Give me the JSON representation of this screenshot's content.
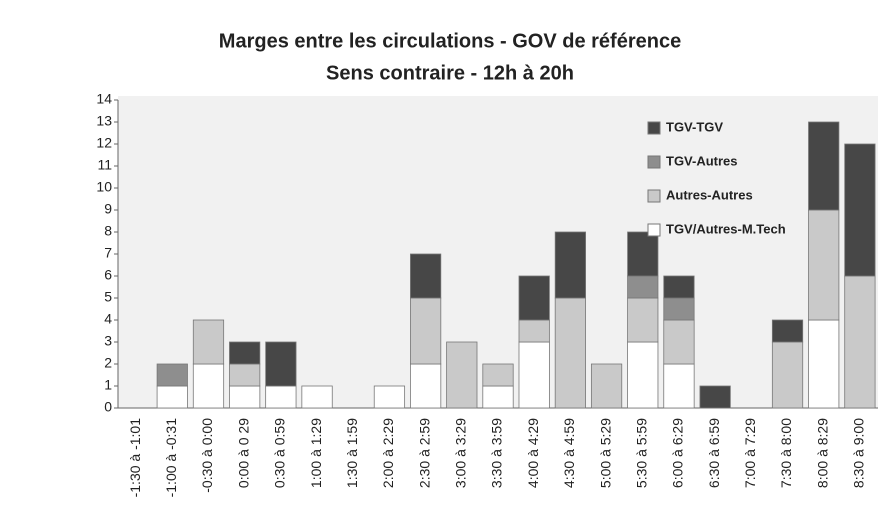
{
  "chart_data": {
    "type": "stacked_bar",
    "title": "Marges entre les circulations - GOV  de référence",
    "subtitle": "Sens contraire - 12h à 20h",
    "categories": [
      "-1:30 à -1:01",
      "-1:00 à -0:31",
      "-0:30 à 0:00",
      "0:00 à 0 29",
      "0:30 à 0:59",
      "1:00 à 1:29",
      "1:30 à 1:59",
      "2:00 à 2:29",
      "2:30 à 2:59",
      "3:00 à 3:29",
      "3:30 à 3:59",
      "4:00 à 4:29",
      "4:30 à 4:59",
      "5:00 à 5:29",
      "5:30 à 5:59",
      "6:00 à 6:29",
      "6:30 à 6:59",
      "7:00 à 7:29",
      "7:30 à 8:00",
      "8:00 à 8:29",
      "8:30 à 9:00"
    ],
    "series": [
      {
        "name": "TGV/Autres-M.Tech",
        "color": "#ffffff",
        "values": [
          0,
          1,
          2,
          1,
          1,
          1,
          0,
          1,
          2,
          0,
          1,
          3,
          0,
          0,
          3,
          2,
          0,
          0,
          0,
          4,
          0
        ]
      },
      {
        "name": "Autres-Autres",
        "color": "#c9c9c9",
        "values": [
          0,
          0,
          2,
          1,
          0,
          0,
          0,
          0,
          3,
          3,
          1,
          1,
          5,
          2,
          2,
          2,
          0,
          0,
          3,
          5,
          6
        ]
      },
      {
        "name": "TGV-Autres",
        "color": "#8e8e8e",
        "values": [
          0,
          1,
          0,
          0,
          0,
          0,
          0,
          0,
          0,
          0,
          0,
          0,
          0,
          0,
          1,
          1,
          0,
          0,
          0,
          0,
          0
        ]
      },
      {
        "name": "TGV-TGV",
        "color": "#474747",
        "values": [
          0,
          0,
          0,
          1,
          2,
          0,
          0,
          0,
          2,
          0,
          0,
          2,
          3,
          0,
          2,
          1,
          1,
          0,
          1,
          4,
          6
        ]
      }
    ],
    "ylim": [
      0,
      14
    ],
    "yticks": [
      0,
      1,
      2,
      3,
      4,
      5,
      6,
      7,
      8,
      9,
      10,
      11,
      12,
      13,
      14
    ],
    "legend": "top-right",
    "grid": false
  }
}
